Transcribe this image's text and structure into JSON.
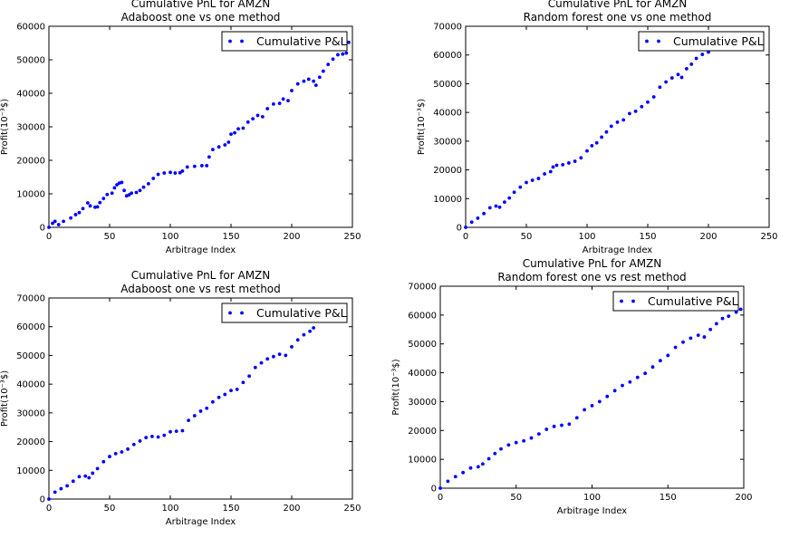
{
  "chart_data": [
    {
      "type": "scatter",
      "title": "Cumulative PnL for AMZN",
      "subtitle": "Adaboost one vs one method",
      "xlabel": "Arbitrage Index",
      "ylabel": "Profit(10⁻³$)",
      "xlim": [
        0,
        250
      ],
      "ylim": [
        0,
        60000
      ],
      "xticks": [
        0,
        50,
        100,
        150,
        200,
        250
      ],
      "yticks": [
        0,
        10000,
        20000,
        30000,
        40000,
        50000,
        60000
      ],
      "legend": "upper-right",
      "color": "#0000ff",
      "series": [
        {
          "name": "Cumulative P&L",
          "points": [
            [
              0,
              0
            ],
            [
              3,
              1200
            ],
            [
              5,
              1800
            ],
            [
              8,
              800
            ],
            [
              12,
              1800
            ],
            [
              18,
              2800
            ],
            [
              22,
              3800
            ],
            [
              25,
              4400
            ],
            [
              28,
              5600
            ],
            [
              32,
              7300
            ],
            [
              34,
              6400
            ],
            [
              38,
              6000
            ],
            [
              40,
              6100
            ],
            [
              42,
              7400
            ],
            [
              45,
              8600
            ],
            [
              48,
              9800
            ],
            [
              52,
              10200
            ],
            [
              54,
              11800
            ],
            [
              56,
              12700
            ],
            [
              58,
              13200
            ],
            [
              60,
              13400
            ],
            [
              62,
              11000
            ],
            [
              64,
              9400
            ],
            [
              66,
              9700
            ],
            [
              68,
              10200
            ],
            [
              72,
              10400
            ],
            [
              75,
              11000
            ],
            [
              78,
              12000
            ],
            [
              82,
              13000
            ],
            [
              86,
              14600
            ],
            [
              90,
              15800
            ],
            [
              95,
              16200
            ],
            [
              100,
              16400
            ],
            [
              104,
              16200
            ],
            [
              108,
              16300
            ],
            [
              110,
              16800
            ],
            [
              114,
              18000
            ],
            [
              120,
              18200
            ],
            [
              126,
              18400
            ],
            [
              130,
              18400
            ],
            [
              132,
              21000
            ],
            [
              135,
              23200
            ],
            [
              140,
              24000
            ],
            [
              145,
              24600
            ],
            [
              148,
              25400
            ],
            [
              150,
              27800
            ],
            [
              153,
              28200
            ],
            [
              156,
              29400
            ],
            [
              160,
              29600
            ],
            [
              164,
              31400
            ],
            [
              168,
              32400
            ],
            [
              172,
              33400
            ],
            [
              176,
              33000
            ],
            [
              180,
              35400
            ],
            [
              185,
              36800
            ],
            [
              190,
              37000
            ],
            [
              193,
              38300
            ],
            [
              197,
              37800
            ],
            [
              200,
              40800
            ],
            [
              205,
              42800
            ],
            [
              210,
              43600
            ],
            [
              214,
              44200
            ],
            [
              218,
              43600
            ],
            [
              220,
              42400
            ],
            [
              223,
              44800
            ],
            [
              226,
              46600
            ],
            [
              230,
              48600
            ],
            [
              234,
              50200
            ],
            [
              238,
              51500
            ],
            [
              242,
              51700
            ],
            [
              245,
              52000
            ],
            [
              247,
              55200
            ]
          ]
        }
      ]
    },
    {
      "type": "scatter",
      "title": "Cumulative PnL for AMZN",
      "subtitle": "Random forest one vs one method",
      "xlabel": "Arbitrage Index",
      "ylabel": "Profit(10⁻³$)",
      "xlim": [
        0,
        250
      ],
      "ylim": [
        0,
        70000
      ],
      "xticks": [
        0,
        50,
        100,
        150,
        200,
        250
      ],
      "yticks": [
        0,
        10000,
        20000,
        30000,
        40000,
        50000,
        60000,
        70000
      ],
      "legend": "upper-right",
      "color": "#0000ff",
      "series": [
        {
          "name": "Cumulative P&L",
          "points": [
            [
              0,
              0
            ],
            [
              5,
              1800
            ],
            [
              10,
              3200
            ],
            [
              15,
              4800
            ],
            [
              20,
              6800
            ],
            [
              25,
              7400
            ],
            [
              28,
              7000
            ],
            [
              32,
              8800
            ],
            [
              36,
              10200
            ],
            [
              40,
              12200
            ],
            [
              45,
              14000
            ],
            [
              50,
              15600
            ],
            [
              55,
              16400
            ],
            [
              60,
              17000
            ],
            [
              65,
              18600
            ],
            [
              70,
              19400
            ],
            [
              72,
              21000
            ],
            [
              75,
              21600
            ],
            [
              80,
              21800
            ],
            [
              85,
              22400
            ],
            [
              90,
              23000
            ],
            [
              95,
              24200
            ],
            [
              100,
              26600
            ],
            [
              104,
              28400
            ],
            [
              108,
              29400
            ],
            [
              112,
              31400
            ],
            [
              116,
              33200
            ],
            [
              120,
              35200
            ],
            [
              125,
              36600
            ],
            [
              130,
              37400
            ],
            [
              135,
              39600
            ],
            [
              140,
              40400
            ],
            [
              145,
              42000
            ],
            [
              150,
              43600
            ],
            [
              155,
              45400
            ],
            [
              160,
              48800
            ],
            [
              165,
              50600
            ],
            [
              170,
              52000
            ],
            [
              175,
              53200
            ],
            [
              178,
              52200
            ],
            [
              182,
              55200
            ],
            [
              186,
              56800
            ],
            [
              190,
              58800
            ],
            [
              195,
              60200
            ],
            [
              200,
              61000
            ]
          ]
        }
      ]
    },
    {
      "type": "scatter",
      "title": "Cumulative PnL for AMZN",
      "subtitle": "Adaboost one vs rest method",
      "xlabel": "Arbitrage Index",
      "ylabel": "Profit(10⁻³$)",
      "xlim": [
        0,
        250
      ],
      "ylim": [
        0,
        70000
      ],
      "xticks": [
        0,
        50,
        100,
        150,
        200,
        250
      ],
      "yticks": [
        0,
        10000,
        20000,
        30000,
        40000,
        50000,
        60000,
        70000
      ],
      "legend": "upper-right",
      "color": "#0000ff",
      "series": [
        {
          "name": "Cumulative P&L",
          "points": [
            [
              0,
              0
            ],
            [
              5,
              2400
            ],
            [
              10,
              3600
            ],
            [
              15,
              4600
            ],
            [
              20,
              6200
            ],
            [
              25,
              7800
            ],
            [
              30,
              8000
            ],
            [
              33,
              7400
            ],
            [
              36,
              9000
            ],
            [
              40,
              10600
            ],
            [
              45,
              13000
            ],
            [
              50,
              14800
            ],
            [
              55,
              15800
            ],
            [
              60,
              16400
            ],
            [
              65,
              17400
            ],
            [
              70,
              19000
            ],
            [
              75,
              20200
            ],
            [
              80,
              21400
            ],
            [
              85,
              21800
            ],
            [
              90,
              21600
            ],
            [
              95,
              22200
            ],
            [
              100,
              23400
            ],
            [
              105,
              23600
            ],
            [
              110,
              23800
            ],
            [
              115,
              27400
            ],
            [
              120,
              29000
            ],
            [
              125,
              30600
            ],
            [
              130,
              31600
            ],
            [
              135,
              33800
            ],
            [
              140,
              35400
            ],
            [
              145,
              36400
            ],
            [
              150,
              37800
            ],
            [
              155,
              38200
            ],
            [
              160,
              40600
            ],
            [
              165,
              42800
            ],
            [
              170,
              45800
            ],
            [
              175,
              47400
            ],
            [
              180,
              48800
            ],
            [
              185,
              49600
            ],
            [
              190,
              50400
            ],
            [
              195,
              50000
            ],
            [
              200,
              53000
            ],
            [
              205,
              55400
            ],
            [
              210,
              57200
            ],
            [
              215,
              58400
            ],
            [
              218,
              59600
            ]
          ]
        }
      ]
    },
    {
      "type": "scatter",
      "title": "Cumulative PnL for AMZN",
      "subtitle": "Random forest one vs rest method",
      "xlabel": "Arbitrage Index",
      "ylabel": "Profit(10⁻³$)",
      "xlim": [
        0,
        200
      ],
      "ylim": [
        0,
        70000
      ],
      "xticks": [
        0,
        50,
        100,
        150,
        200
      ],
      "yticks": [
        0,
        10000,
        20000,
        30000,
        40000,
        50000,
        60000,
        70000
      ],
      "legend": "upper-right",
      "color": "#0000ff",
      "series": [
        {
          "name": "Cumulative P&L",
          "points": [
            [
              0,
              0
            ],
            [
              5,
              2400
            ],
            [
              10,
              4000
            ],
            [
              15,
              5400
            ],
            [
              20,
              7000
            ],
            [
              25,
              7400
            ],
            [
              28,
              8400
            ],
            [
              32,
              10200
            ],
            [
              36,
              12000
            ],
            [
              40,
              13600
            ],
            [
              45,
              15000
            ],
            [
              50,
              15800
            ],
            [
              55,
              16400
            ],
            [
              60,
              17400
            ],
            [
              65,
              18800
            ],
            [
              70,
              20400
            ],
            [
              75,
              21400
            ],
            [
              80,
              21800
            ],
            [
              85,
              22200
            ],
            [
              90,
              24400
            ],
            [
              95,
              27200
            ],
            [
              100,
              28600
            ],
            [
              105,
              30000
            ],
            [
              110,
              31800
            ],
            [
              115,
              33800
            ],
            [
              120,
              35600
            ],
            [
              125,
              36800
            ],
            [
              130,
              38400
            ],
            [
              135,
              39800
            ],
            [
              140,
              42000
            ],
            [
              145,
              44200
            ],
            [
              150,
              46000
            ],
            [
              155,
              48800
            ],
            [
              160,
              50600
            ],
            [
              165,
              52000
            ],
            [
              170,
              53000
            ],
            [
              174,
              52400
            ],
            [
              178,
              55000
            ],
            [
              182,
              57000
            ],
            [
              186,
              58800
            ],
            [
              190,
              59600
            ],
            [
              195,
              61000
            ],
            [
              198,
              62000
            ]
          ]
        }
      ]
    }
  ]
}
